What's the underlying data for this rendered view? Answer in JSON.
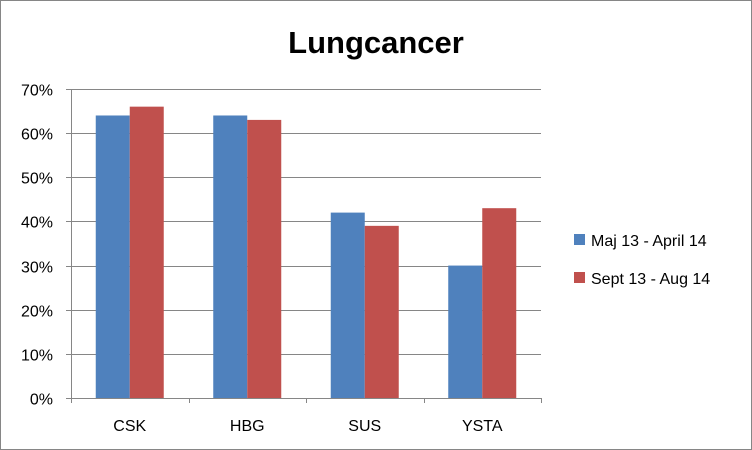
{
  "chart_data": {
    "type": "bar",
    "title": "Lungcancer",
    "xlabel": "",
    "ylabel": "",
    "categories": [
      "CSK",
      "HBG",
      "SUS",
      "YSTA"
    ],
    "series": [
      {
        "name": "Maj 13 - April 14",
        "color": "#4f81bd",
        "values": [
          0.64,
          0.64,
          0.42,
          0.3
        ]
      },
      {
        "name": "Sept 13 - Aug 14",
        "color": "#c0504d",
        "values": [
          0.66,
          0.63,
          0.39,
          0.43
        ]
      }
    ],
    "ylim": [
      0,
      0.7
    ],
    "yticks": [
      "0%",
      "10%",
      "20%",
      "30%",
      "40%",
      "50%",
      "60%",
      "70%"
    ],
    "grid": true,
    "legend_position": "right"
  }
}
